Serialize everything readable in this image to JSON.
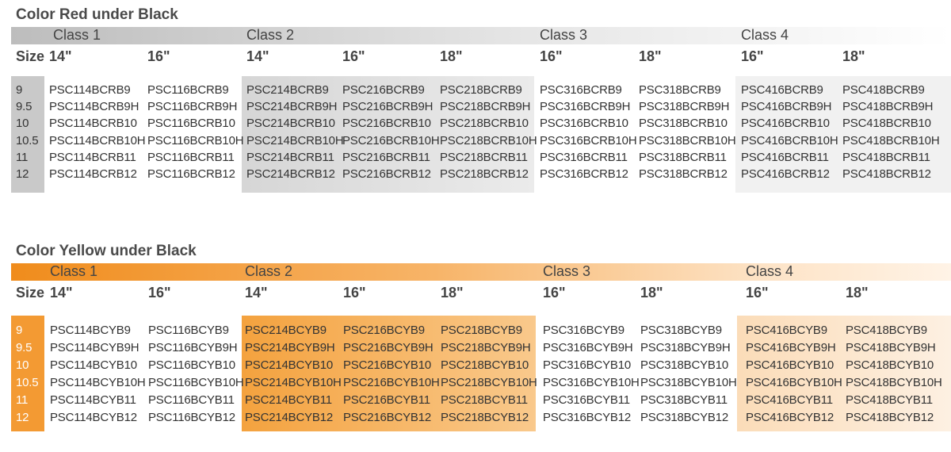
{
  "tables": [
    {
      "title": "Color Red under Black",
      "size_label": "Size",
      "columns": [
        {
          "class": "Class 1",
          "sizes": [
            "14\"",
            "16\""
          ]
        },
        {
          "class": "Class 2",
          "sizes": [
            "14\"",
            "16\"",
            "18\""
          ]
        },
        {
          "class": "Class 3",
          "sizes": [
            "16\"",
            "18\""
          ]
        },
        {
          "class": "Class 4",
          "sizes": [
            "16\"",
            "18\""
          ]
        }
      ],
      "rows": [
        {
          "size": "9",
          "codes": [
            "PSC114BCRB9",
            "PSC116BCRB9",
            "PSC214BCRB9",
            "PSC216BCRB9",
            "PSC218BCRB9",
            "PSC316BCRB9",
            "PSC318BCRB9",
            "PSC416BCRB9",
            "PSC418BCRB9"
          ]
        },
        {
          "size": "9.5",
          "codes": [
            "PSC114BCRB9H",
            "PSC116BCRB9H",
            "PSC214BCRB9H",
            "PSC216BCRB9H",
            "PSC218BCRB9H",
            "PSC316BCRB9H",
            "PSC318BCRB9H",
            "PSC416BCRB9H",
            "PSC418BCRB9H"
          ]
        },
        {
          "size": "10",
          "codes": [
            "PSC114BCRB10",
            "PSC116BCRB10",
            "PSC214BCRB10",
            "PSC216BCRB10",
            "PSC218BCRB10",
            "PSC316BCRB10",
            "PSC318BCRB10",
            "PSC416BCRB10",
            "PSC418BCRB10"
          ]
        },
        {
          "size": "10.5",
          "codes": [
            "PSC114BCRB10H",
            "PSC116BCRB10H",
            "PSC214BCRB10H",
            "PSC216BCRB10H",
            "PSC218BCRB10H",
            "PSC316BCRB10H",
            "PSC318BCRB10H",
            "PSC416BCRB10H",
            "PSC418BCRB10H"
          ]
        },
        {
          "size": "11",
          "codes": [
            "PSC114BCRB11",
            "PSC116BCRB11",
            "PSC214BCRB11",
            "PSC216BCRB11",
            "PSC218BCRB11",
            "PSC316BCRB11",
            "PSC318BCRB11",
            "PSC416BCRB11",
            "PSC418BCRB11"
          ]
        },
        {
          "size": "12",
          "codes": [
            "PSC114BCRB12",
            "PSC116BCRB12",
            "PSC214BCRB12",
            "PSC216BCRB12",
            "PSC218BCRB12",
            "PSC316BCRB12",
            "PSC318BCRB12",
            "PSC416BCRB12",
            "PSC418BCRB12"
          ]
        }
      ]
    },
    {
      "title": "Color Yellow under Black",
      "size_label": "Size",
      "columns": [
        {
          "class": "Class 1",
          "sizes": [
            "14\"",
            "16\""
          ]
        },
        {
          "class": "Class 2",
          "sizes": [
            "14\"",
            "16\"",
            "18\""
          ]
        },
        {
          "class": "Class 3",
          "sizes": [
            "16\"",
            "18\""
          ]
        },
        {
          "class": "Class 4",
          "sizes": [
            "16\"",
            "18\""
          ]
        }
      ],
      "rows": [
        {
          "size": "9",
          "codes": [
            "PSC114BCYB9",
            "PSC116BCYB9",
            "PSC214BCYB9",
            "PSC216BCYB9",
            "PSC218BCYB9",
            "PSC316BCYB9",
            "PSC318BCYB9",
            "PSC416BCYB9",
            "PSC418BCYB9"
          ]
        },
        {
          "size": "9.5",
          "codes": [
            "PSC114BCYB9H",
            "PSC116BCYB9H",
            "PSC214BCYB9H",
            "PSC216BCYB9H",
            "PSC218BCYB9H",
            "PSC316BCYB9H",
            "PSC318BCYB9H",
            "PSC416BCYB9H",
            "PSC418BCYB9H"
          ]
        },
        {
          "size": "10",
          "codes": [
            "PSC114BCYB10",
            "PSC116BCYB10",
            "PSC214BCYB10",
            "PSC216BCYB10",
            "PSC218BCYB10",
            "PSC316BCYB10",
            "PSC318BCYB10",
            "PSC416BCYB10",
            "PSC418BCYB10"
          ]
        },
        {
          "size": "10.5",
          "codes": [
            "PSC114BCYB10H",
            "PSC116BCYB10H",
            "PSC214BCYB10H",
            "PSC216BCYB10H",
            "PSC218BCYB10H",
            "PSC316BCYB10H",
            "PSC318BCYB10H",
            "PSC416BCYB10H",
            "PSC418BCYB10H"
          ]
        },
        {
          "size": "11",
          "codes": [
            "PSC114BCYB11",
            "PSC116BCYB11",
            "PSC214BCYB11",
            "PSC216BCYB11",
            "PSC218BCYB11",
            "PSC316BCYB11",
            "PSC318BCYB11",
            "PSC416BCYB11",
            "PSC418BCYB11"
          ]
        },
        {
          "size": "12",
          "codes": [
            "PSC114BCYB12",
            "PSC116BCYB12",
            "PSC214BCYB12",
            "PSC216BCYB12",
            "PSC218BCYB12",
            "PSC316BCYB12",
            "PSC318BCYB12",
            "PSC416BCYB12",
            "PSC418BCYB12"
          ]
        }
      ]
    }
  ]
}
